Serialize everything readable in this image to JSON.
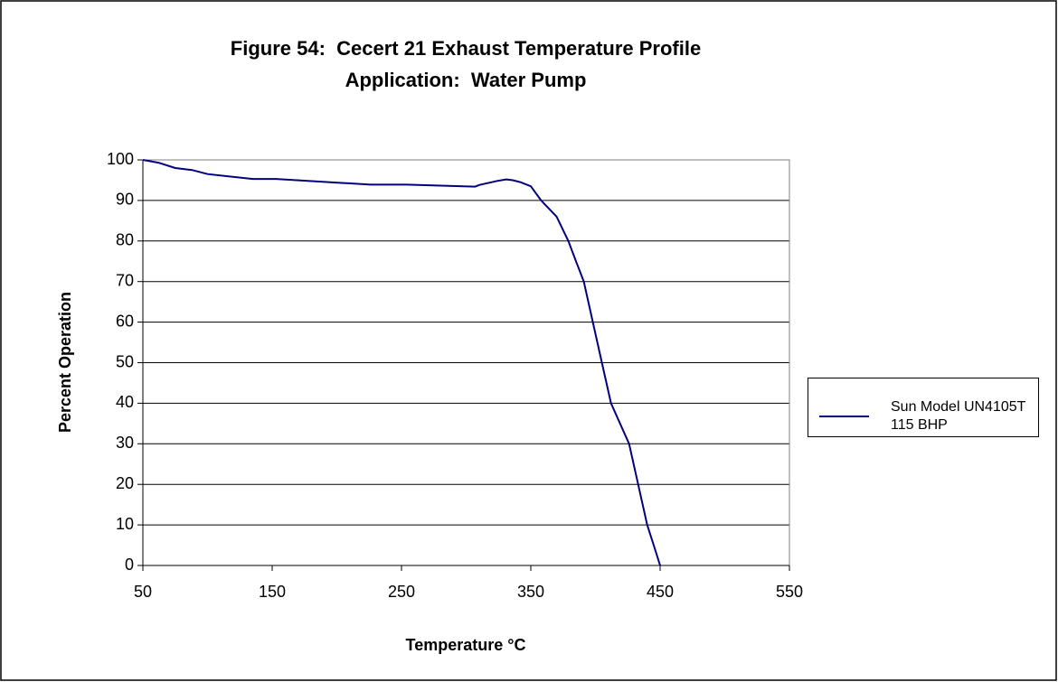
{
  "chart_data": {
    "type": "line",
    "title": "Figure 54:  Cecert 21 Exhaust Temperature Profile",
    "subtitle": "Application:  Water Pump",
    "xlabel": "Temperature °C",
    "ylabel": "Percent Operation",
    "xlim": [
      50,
      550
    ],
    "xticks": [
      50,
      150,
      250,
      350,
      450,
      550
    ],
    "ylim": [
      0,
      100
    ],
    "yticks": [
      0,
      10,
      20,
      30,
      40,
      50,
      60,
      70,
      80,
      90,
      100
    ],
    "grid": true,
    "legend": "right",
    "x": [
      50,
      62,
      75,
      88,
      100,
      135,
      153,
      205,
      226,
      254,
      286,
      307,
      310,
      324,
      331,
      336,
      342,
      350,
      358,
      370,
      379,
      385,
      391,
      398,
      405,
      412,
      419,
      426,
      433,
      440,
      445,
      450
    ],
    "series": [
      {
        "name": "Sun Model UN4105T 115 BHP",
        "color": "#000080",
        "values": [
          100,
          99.3,
          98,
          97.5,
          96.5,
          95.3,
          95.3,
          94.3,
          93.9,
          93.9,
          93.6,
          93.4,
          93.8,
          94.8,
          95.2,
          95,
          94.5,
          93.5,
          90,
          86,
          80,
          75,
          70,
          60,
          50,
          40,
          35,
          30,
          20,
          10,
          5,
          0
        ]
      }
    ]
  }
}
